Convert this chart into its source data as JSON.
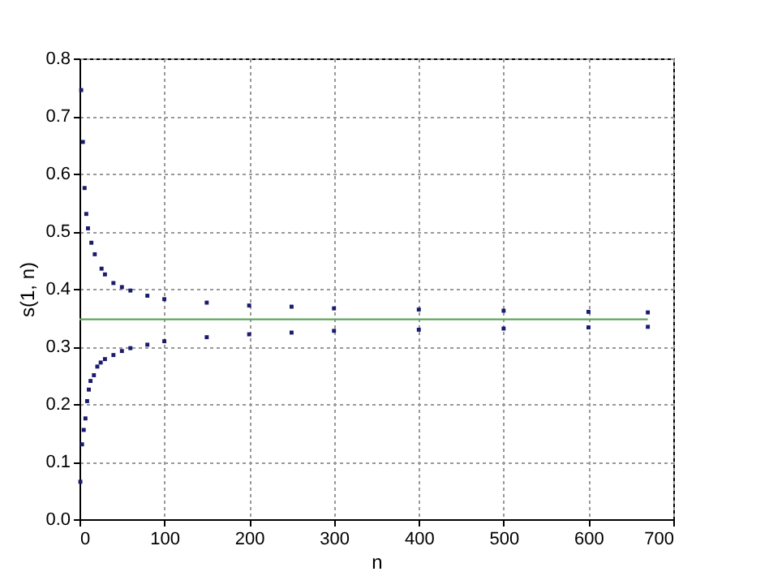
{
  "chart_data": {
    "type": "scatter",
    "xlabel": "n",
    "ylabel": "s(1, n)",
    "xlim": [
      0,
      700
    ],
    "ylim": [
      0,
      0.8
    ],
    "xticks": [
      0,
      100,
      200,
      300,
      400,
      500,
      600,
      700
    ],
    "yticks": [
      {
        "value": 0,
        "label": "0.0"
      },
      0.1,
      0.2,
      0.3,
      0.4,
      0.5,
      0.6,
      0.7,
      0.8
    ],
    "grid": true,
    "series": [
      {
        "color": "#1a1a6e",
        "marker": "square",
        "x": [
          2,
          4,
          6,
          8,
          10,
          14,
          18,
          26,
          30,
          40,
          50,
          60,
          80,
          100,
          150,
          200,
          250,
          300,
          400,
          500,
          600,
          670
        ],
        "values": [
          0.745,
          0.655,
          0.575,
          0.53,
          0.505,
          0.48,
          0.46,
          0.435,
          0.425,
          0.41,
          0.403,
          0.397,
          0.388,
          0.382,
          0.376,
          0.371,
          0.369,
          0.366,
          0.364,
          0.362,
          0.36,
          0.359
        ]
      },
      {
        "color": "#1a1a6e",
        "marker": "square",
        "x": [
          1,
          3,
          5,
          7,
          9,
          11,
          13,
          17,
          21,
          25,
          30,
          40,
          50,
          60,
          80,
          100,
          150,
          200,
          250,
          300,
          400,
          500,
          600,
          670
        ],
        "values": [
          0.065,
          0.13,
          0.155,
          0.175,
          0.205,
          0.225,
          0.24,
          0.25,
          0.265,
          0.272,
          0.278,
          0.285,
          0.292,
          0.297,
          0.303,
          0.309,
          0.316,
          0.321,
          0.324,
          0.327,
          0.329,
          0.331,
          0.333,
          0.334
        ]
      },
      {
        "type": "line",
        "color": "#5fa35f",
        "x": [
          0,
          670
        ],
        "values": [
          0.347,
          0.347
        ]
      }
    ]
  }
}
